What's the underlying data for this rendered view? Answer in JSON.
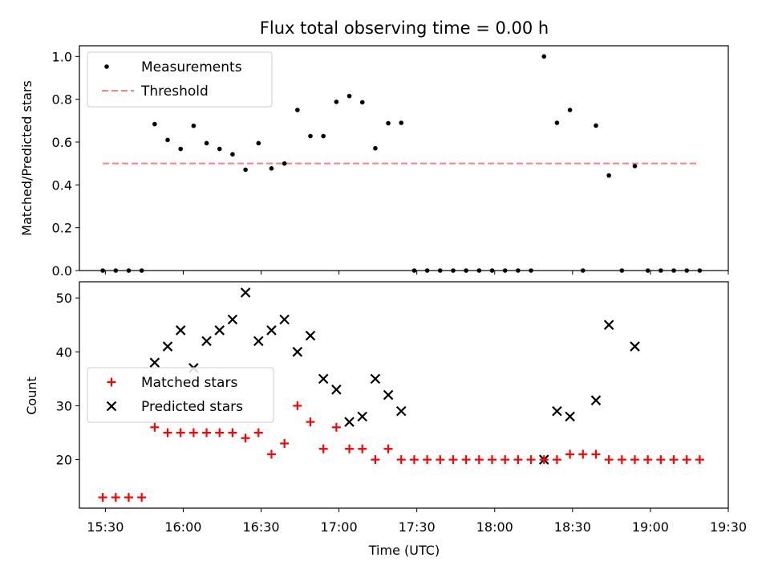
{
  "chart_data": [
    {
      "type": "scatter",
      "title": "Flux total observing time = 0.00 h",
      "ylabel": "Matched/Predicted stars",
      "xlim": [
        "15:20",
        "19:30"
      ],
      "ylim": [
        0,
        1.05
      ],
      "ytick_labels": [
        "0.0",
        "0.2",
        "0.4",
        "0.6",
        "0.8",
        "1.0"
      ],
      "ytick_values": [
        0,
        0.2,
        0.4,
        0.6,
        0.8,
        1.0
      ],
      "legend": {
        "placement": "upper left",
        "entries": [
          "Measurements",
          "Threshold"
        ]
      },
      "series": [
        {
          "name": "Measurements",
          "color": "#000000",
          "marker": "dot",
          "points": [
            [
              "15:29",
              0
            ],
            [
              "15:34",
              0
            ],
            [
              "15:39",
              0
            ],
            [
              "15:44",
              0
            ],
            [
              "15:49",
              0.684
            ],
            [
              "15:54",
              0.61
            ],
            [
              "15:59",
              0.568
            ],
            [
              "16:04",
              0.676
            ],
            [
              "16:09",
              0.595
            ],
            [
              "16:14",
              0.568
            ],
            [
              "16:19",
              0.543
            ],
            [
              "16:24",
              0.471
            ],
            [
              "16:29",
              0.595
            ],
            [
              "16:34",
              0.477
            ],
            [
              "16:39",
              0.5
            ],
            [
              "16:44",
              0.75
            ],
            [
              "16:49",
              0.628
            ],
            [
              "16:54",
              0.628
            ],
            [
              "16:59",
              0.788
            ],
            [
              "17:04",
              0.815
            ],
            [
              "17:09",
              0.786
            ],
            [
              "17:14",
              0.571
            ],
            [
              "17:19",
              0.688
            ],
            [
              "17:24",
              0.69
            ],
            [
              "17:29",
              0
            ],
            [
              "17:34",
              0
            ],
            [
              "17:39",
              0
            ],
            [
              "17:44",
              0
            ],
            [
              "17:49",
              0
            ],
            [
              "17:54",
              0
            ],
            [
              "17:59",
              0
            ],
            [
              "18:04",
              0
            ],
            [
              "18:09",
              0
            ],
            [
              "18:14",
              0
            ],
            [
              "18:19",
              1.0
            ],
            [
              "18:24",
              0.69
            ],
            [
              "18:29",
              0.75
            ],
            [
              "18:34",
              0
            ],
            [
              "18:39",
              0.677
            ],
            [
              "18:44",
              0.444
            ],
            [
              "18:49",
              0
            ],
            [
              "18:54",
              0.488
            ],
            [
              "18:59",
              0
            ],
            [
              "19:04",
              0
            ],
            [
              "19:09",
              0
            ],
            [
              "19:14",
              0
            ],
            [
              "19:19",
              0
            ]
          ]
        },
        {
          "name": "Threshold",
          "color": "#ff7f7f",
          "style": "dashed",
          "points": [
            [
              "15:29",
              0.5
            ],
            [
              "19:19",
              0.5
            ]
          ]
        }
      ]
    },
    {
      "type": "scatter",
      "ylabel": "Count",
      "xlabel": "Time (UTC)",
      "xlim": [
        "15:20",
        "19:30"
      ],
      "ylim": [
        11,
        53
      ],
      "xtick_labels": [
        "15:30",
        "16:00",
        "16:30",
        "17:00",
        "17:30",
        "18:00",
        "18:30",
        "19:00",
        "19:30"
      ],
      "ytick_labels": [
        "20",
        "30",
        "40",
        "50"
      ],
      "ytick_values": [
        20,
        30,
        40,
        50
      ],
      "legend": {
        "placement": "center left",
        "entries": [
          "Matched stars",
          "Predicted stars"
        ]
      },
      "series": [
        {
          "name": "Matched stars",
          "color": "#ff0000",
          "marker": "plus",
          "points": [
            [
              "15:29",
              13
            ],
            [
              "15:34",
              13
            ],
            [
              "15:39",
              13
            ],
            [
              "15:44",
              13
            ],
            [
              "15:49",
              26
            ],
            [
              "15:54",
              25
            ],
            [
              "15:59",
              25
            ],
            [
              "16:04",
              25
            ],
            [
              "16:09",
              25
            ],
            [
              "16:14",
              25
            ],
            [
              "16:19",
              25
            ],
            [
              "16:24",
              24
            ],
            [
              "16:29",
              25
            ],
            [
              "16:34",
              21
            ],
            [
              "16:39",
              23
            ],
            [
              "16:44",
              30
            ],
            [
              "16:49",
              27
            ],
            [
              "16:54",
              22
            ],
            [
              "16:59",
              26
            ],
            [
              "17:04",
              22
            ],
            [
              "17:09",
              22
            ],
            [
              "17:14",
              20
            ],
            [
              "17:19",
              22
            ],
            [
              "17:24",
              20
            ],
            [
              "17:29",
              20
            ],
            [
              "17:34",
              20
            ],
            [
              "17:39",
              20
            ],
            [
              "17:44",
              20
            ],
            [
              "17:49",
              20
            ],
            [
              "17:54",
              20
            ],
            [
              "17:59",
              20
            ],
            [
              "18:04",
              20
            ],
            [
              "18:09",
              20
            ],
            [
              "18:14",
              20
            ],
            [
              "18:19",
              20
            ],
            [
              "18:24",
              20
            ],
            [
              "18:29",
              21
            ],
            [
              "18:34",
              21
            ],
            [
              "18:39",
              21
            ],
            [
              "18:44",
              20
            ],
            [
              "18:49",
              20
            ],
            [
              "18:54",
              20
            ],
            [
              "18:59",
              20
            ],
            [
              "19:04",
              20
            ],
            [
              "19:09",
              20
            ],
            [
              "19:14",
              20
            ],
            [
              "19:19",
              20
            ]
          ]
        },
        {
          "name": "Predicted stars",
          "color": "#000000",
          "marker": "x",
          "points": [
            [
              "15:49",
              38
            ],
            [
              "15:54",
              41
            ],
            [
              "15:59",
              44
            ],
            [
              "16:04",
              37
            ],
            [
              "16:09",
              42
            ],
            [
              "16:14",
              44
            ],
            [
              "16:19",
              46
            ],
            [
              "16:24",
              51
            ],
            [
              "16:29",
              42
            ],
            [
              "16:34",
              44
            ],
            [
              "16:39",
              46
            ],
            [
              "16:44",
              40
            ],
            [
              "16:49",
              43
            ],
            [
              "16:54",
              35
            ],
            [
              "16:59",
              33
            ],
            [
              "17:04",
              27
            ],
            [
              "17:09",
              28
            ],
            [
              "17:14",
              35
            ],
            [
              "17:19",
              32
            ],
            [
              "17:24",
              29
            ],
            [
              "18:19",
              20
            ],
            [
              "18:24",
              29
            ],
            [
              "18:29",
              28
            ],
            [
              "18:39",
              31
            ],
            [
              "18:44",
              45
            ],
            [
              "18:54",
              41
            ]
          ]
        }
      ]
    }
  ]
}
